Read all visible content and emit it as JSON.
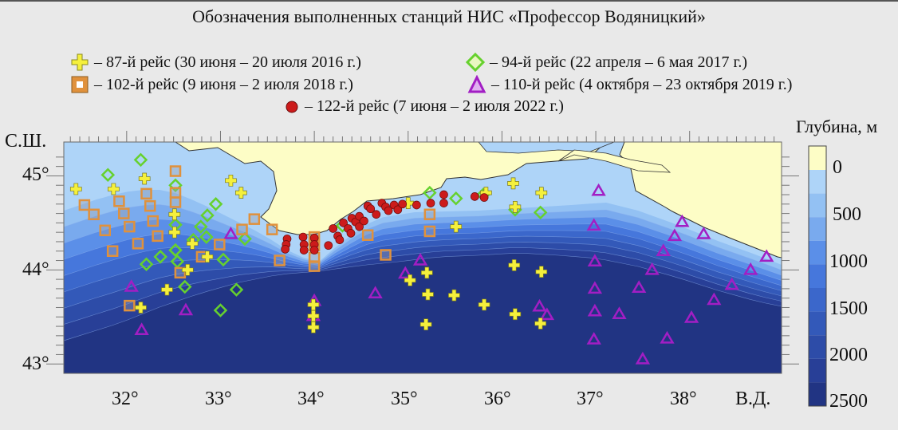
{
  "title": "Обозначения выполненных станций НИС «Профессор Водяницкий»",
  "legend": [
    {
      "symbol": "cross",
      "color": "#f5f03c",
      "label": "– 87-й рейс (30 июня – 20 июля 2016 г.)"
    },
    {
      "symbol": "diamond",
      "color": "#66d12e",
      "label": "– 94-й рейс (22 апреля – 6 мая 2017 г.)"
    },
    {
      "symbol": "square",
      "color": "#e0913c",
      "label": "– 102-й рейс (9 июня – 2 июля 2018 г.)"
    },
    {
      "symbol": "triangle",
      "color": "#a21ec4",
      "label": "– 110-й рейс (4 октября – 23 октября 2019 г.)"
    },
    {
      "symbol": "circle",
      "color": "#cc1b1b",
      "label": "– 122-й рейс (7 июня – 2 июля 2022 г.)"
    }
  ],
  "axes": {
    "lat_label": "С.Ш.",
    "lon_label": "В.Д.",
    "lon_ticks": [
      "32°",
      "33°",
      "34°",
      "35°",
      "36°",
      "37°",
      "38°"
    ],
    "lat_ticks": [
      "45°",
      "44°",
      "43°"
    ]
  },
  "colorbar": {
    "title": "Глубина, м",
    "tick_labels": [
      "0",
      "500",
      "1000",
      "1500",
      "2000",
      "2500"
    ],
    "colors": [
      "#fdfdc6",
      "#aed4f8",
      "#93c1f3",
      "#79aaee",
      "#5b8fe8",
      "#4677dc",
      "#3b67cb",
      "#3359b9",
      "#2d4ca8",
      "#283f97",
      "#213483"
    ]
  },
  "chart_data": {
    "type": "scatter",
    "xlim": [
      31.33,
      38.98
    ],
    "ylim": [
      42.9,
      45.36
    ],
    "xlabel": "В.Д.",
    "ylabel": "С.Ш.",
    "series": [
      {
        "name": "87-й рейс",
        "symbol": "cross",
        "points": [
          [
            31.46,
            44.86
          ],
          [
            31.86,
            44.86
          ],
          [
            32.19,
            44.97
          ],
          [
            32.51,
            44.59
          ],
          [
            33.11,
            44.95
          ],
          [
            33.22,
            44.82
          ],
          [
            32.43,
            43.79
          ],
          [
            32.15,
            43.6
          ],
          [
            32.65,
            44.0
          ],
          [
            32.86,
            44.14
          ],
          [
            32.51,
            44.4
          ],
          [
            33.99,
            43.63
          ],
          [
            33.99,
            43.51
          ],
          [
            33.99,
            43.39
          ],
          [
            35.0,
            44.71
          ],
          [
            35.02,
            43.89
          ],
          [
            35.2,
            43.97
          ],
          [
            35.21,
            43.74
          ],
          [
            35.19,
            43.42
          ],
          [
            35.49,
            43.73
          ],
          [
            35.51,
            44.46
          ],
          [
            35.81,
            43.63
          ],
          [
            36.14,
            43.53
          ],
          [
            36.41,
            43.43
          ],
          [
            36.12,
            44.92
          ],
          [
            36.14,
            44.67
          ],
          [
            36.42,
            44.82
          ],
          [
            36.42,
            43.98
          ],
          [
            35.83,
            44.82
          ],
          [
            36.13,
            44.05
          ],
          [
            32.7,
            44.28
          ]
        ]
      },
      {
        "name": "94-й рейс",
        "symbol": "diamond",
        "points": [
          [
            32.15,
            45.17
          ],
          [
            31.8,
            45.01
          ],
          [
            32.95,
            44.7
          ],
          [
            32.86,
            44.58
          ],
          [
            32.52,
            44.9
          ],
          [
            32.52,
            44.48
          ],
          [
            32.79,
            44.46
          ],
          [
            32.71,
            44.32
          ],
          [
            32.85,
            44.35
          ],
          [
            32.52,
            44.21
          ],
          [
            32.36,
            44.14
          ],
          [
            32.54,
            44.09
          ],
          [
            32.21,
            44.06
          ],
          [
            33.03,
            44.11
          ],
          [
            33.26,
            44.33
          ],
          [
            32.62,
            43.82
          ],
          [
            33.17,
            43.79
          ],
          [
            33.0,
            43.57
          ],
          [
            35.23,
            44.82
          ],
          [
            34.3,
            44.47
          ],
          [
            35.51,
            44.76
          ],
          [
            35.8,
            44.8
          ],
          [
            36.41,
            44.61
          ],
          [
            36.14,
            44.64
          ]
        ]
      },
      {
        "name": "102-й рейс",
        "symbol": "square",
        "points": [
          [
            32.52,
            45.05
          ],
          [
            32.21,
            44.81
          ],
          [
            32.52,
            44.82
          ],
          [
            32.52,
            44.72
          ],
          [
            32.25,
            44.68
          ],
          [
            31.55,
            44.69
          ],
          [
            31.92,
            44.73
          ],
          [
            31.65,
            44.59
          ],
          [
            31.97,
            44.6
          ],
          [
            32.03,
            44.46
          ],
          [
            32.28,
            44.52
          ],
          [
            31.77,
            44.42
          ],
          [
            32.33,
            44.36
          ],
          [
            32.12,
            44.28
          ],
          [
            31.85,
            44.2
          ],
          [
            32.8,
            44.14
          ],
          [
            32.57,
            43.97
          ],
          [
            32.99,
            44.27
          ],
          [
            33.23,
            44.43
          ],
          [
            33.36,
            44.54
          ],
          [
            33.55,
            44.43
          ],
          [
            33.63,
            44.1
          ],
          [
            34.0,
            44.35
          ],
          [
            34.0,
            44.26
          ],
          [
            34.0,
            44.13
          ],
          [
            34.0,
            44.04
          ],
          [
            34.57,
            44.37
          ],
          [
            34.76,
            44.16
          ],
          [
            35.23,
            44.59
          ],
          [
            35.23,
            44.41
          ],
          [
            32.03,
            43.62
          ]
        ]
      },
      {
        "name": "110-й рейс",
        "symbol": "triangle",
        "points": [
          [
            37.03,
            44.84
          ],
          [
            37.92,
            44.51
          ],
          [
            38.15,
            44.38
          ],
          [
            37.84,
            44.36
          ],
          [
            37.72,
            44.2
          ],
          [
            36.98,
            44.47
          ],
          [
            38.82,
            44.14
          ],
          [
            38.65,
            44.0
          ],
          [
            38.45,
            43.84
          ],
          [
            38.26,
            43.68
          ],
          [
            38.02,
            43.49
          ],
          [
            37.6,
            44.0
          ],
          [
            37.46,
            43.81
          ],
          [
            36.99,
            44.09
          ],
          [
            36.99,
            43.8
          ],
          [
            36.99,
            43.56
          ],
          [
            37.25,
            43.53
          ],
          [
            36.98,
            43.26
          ],
          [
            37.76,
            43.27
          ],
          [
            37.5,
            43.05
          ],
          [
            36.4,
            43.61
          ],
          [
            36.48,
            43.52
          ],
          [
            32.05,
            43.82
          ],
          [
            32.63,
            43.57
          ],
          [
            32.16,
            43.36
          ],
          [
            34.0,
            43.67
          ],
          [
            33.99,
            43.51
          ],
          [
            35.13,
            44.1
          ],
          [
            34.97,
            43.96
          ],
          [
            34.65,
            43.75
          ],
          [
            33.11,
            44.38
          ]
        ]
      },
      {
        "name": "122-й рейс",
        "symbol": "circle",
        "points": [
          [
            33.71,
            44.33
          ],
          [
            33.7,
            44.27
          ],
          [
            33.69,
            44.22
          ],
          [
            33.88,
            44.35
          ],
          [
            33.89,
            44.27
          ],
          [
            33.89,
            44.21
          ],
          [
            34.0,
            44.34
          ],
          [
            34.0,
            44.27
          ],
          [
            34.0,
            44.21
          ],
          [
            34.15,
            44.26
          ],
          [
            34.2,
            44.44
          ],
          [
            34.25,
            44.36
          ],
          [
            34.27,
            44.32
          ],
          [
            34.31,
            44.5
          ],
          [
            34.36,
            44.44
          ],
          [
            34.39,
            44.39
          ],
          [
            34.4,
            44.55
          ],
          [
            34.44,
            44.51
          ],
          [
            34.48,
            44.57
          ],
          [
            34.48,
            44.46
          ],
          [
            34.53,
            44.52
          ],
          [
            34.57,
            44.68
          ],
          [
            34.6,
            44.65
          ],
          [
            34.66,
            44.59
          ],
          [
            34.72,
            44.71
          ],
          [
            34.76,
            44.67
          ],
          [
            34.79,
            44.63
          ],
          [
            34.85,
            44.69
          ],
          [
            34.89,
            44.64
          ],
          [
            34.94,
            44.7
          ],
          [
            35.09,
            44.69
          ],
          [
            35.24,
            44.71
          ],
          [
            35.38,
            44.8
          ],
          [
            35.38,
            44.71
          ],
          [
            35.71,
            44.78
          ],
          [
            35.81,
            44.77
          ]
        ]
      }
    ]
  }
}
